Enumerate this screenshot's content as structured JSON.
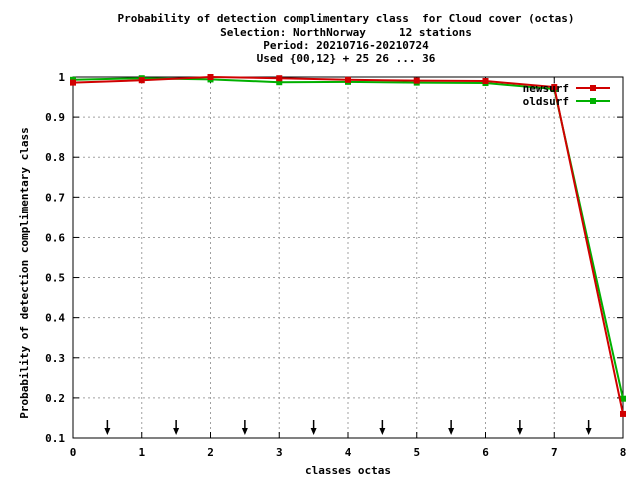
{
  "chart_data": {
    "type": "line",
    "title_lines": [
      "Probability of detection complimentary class  for Cloud cover (octas)",
      "Selection: NorthNorway     12 stations",
      "Period: 20210716-20210724",
      "Used {00,12} + 25 26 ... 36"
    ],
    "xlabel": "classes octas",
    "ylabel": "Probability of detection complimentary class",
    "xlim": [
      0,
      8
    ],
    "ylim": [
      0.1,
      1
    ],
    "x_ticks": [
      "0",
      "1",
      "2",
      "3",
      "4",
      "5",
      "6",
      "7",
      "8"
    ],
    "y_ticks": [
      "0.1",
      "0.2",
      "0.3",
      "0.4",
      "0.5",
      "0.6",
      "0.7",
      "0.8",
      "0.9",
      "1"
    ],
    "grid": true,
    "legend_position": "top-right",
    "x": [
      0,
      1,
      2,
      3,
      4,
      5,
      6,
      7,
      8
    ],
    "series": [
      {
        "name": "newsurf",
        "color": "#d00000",
        "values": [
          0.986,
          0.992,
          1.0,
          0.997,
          0.993,
          0.991,
          0.99,
          0.975,
          0.16
        ]
      },
      {
        "name": "oldsurf",
        "color": "#00b000",
        "values": [
          0.993,
          0.997,
          0.994,
          0.987,
          0.988,
          0.986,
          0.985,
          0.97,
          0.198
        ]
      }
    ],
    "arrow_markers_x": [
      0.5,
      1.5,
      2.5,
      3.5,
      4.5,
      5.5,
      6.5,
      7.5
    ]
  }
}
